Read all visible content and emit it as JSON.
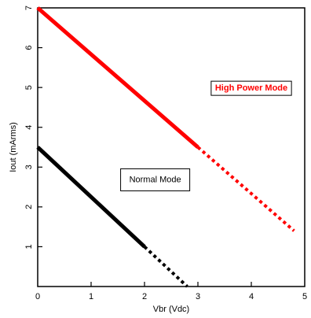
{
  "chart_data": {
    "type": "line",
    "xlabel": "Vbr (Vdc)",
    "ylabel": "Iout (mArms)",
    "xlim": [
      0,
      5
    ],
    "ylim": [
      0,
      7
    ],
    "xticks": [
      "0",
      "1",
      "2",
      "3",
      "4",
      "5"
    ],
    "yticks": [
      "1",
      "2",
      "3",
      "4",
      "5",
      "6",
      "7"
    ],
    "grid": false,
    "series": [
      {
        "name": "High Power Mode",
        "color": "#ff0000",
        "solid": {
          "x": [
            0,
            3
          ],
          "y": [
            7,
            3.5
          ]
        },
        "dotted": {
          "x": [
            3,
            4.8
          ],
          "y": [
            3.5,
            1.4
          ]
        }
      },
      {
        "name": "Normal Mode",
        "color": "#000000",
        "solid": {
          "x": [
            0,
            2
          ],
          "y": [
            3.5,
            1.0
          ]
        },
        "dotted": {
          "x": [
            2,
            2.8
          ],
          "y": [
            1.0,
            0.0
          ]
        }
      }
    ],
    "annotations": [
      {
        "text": "High Power Mode",
        "color": "#ff0000",
        "x": 4.0,
        "y": 5.0
      },
      {
        "text": "Normal Mode",
        "color": "#000000",
        "x": 2.2,
        "y": 2.7
      }
    ]
  }
}
